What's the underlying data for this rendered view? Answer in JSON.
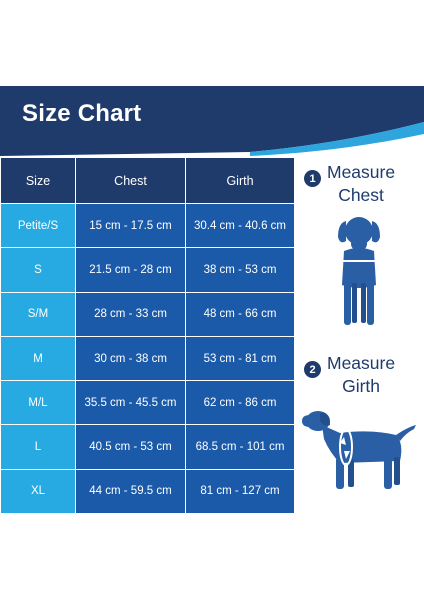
{
  "title": "Size Chart",
  "table": {
    "headers": [
      "Size",
      "Chest",
      "Girth"
    ],
    "rows": [
      {
        "size": "Petite/S",
        "chest": "15 cm - 17.5 cm",
        "girth": "30.4 cm - 40.6 cm"
      },
      {
        "size": "S",
        "chest": "21.5 cm - 28 cm",
        "girth": "38 cm - 53 cm"
      },
      {
        "size": "S/M",
        "chest": "28 cm - 33 cm",
        "girth": "48 cm - 66 cm"
      },
      {
        "size": "M",
        "chest": "30 cm - 38 cm",
        "girth": "53 cm - 81 cm"
      },
      {
        "size": "M/L",
        "chest": "35.5 cm - 45.5 cm",
        "girth": "62 cm - 86 cm"
      },
      {
        "size": "L",
        "chest": "40.5 cm - 53 cm",
        "girth": "68.5 cm - 101 cm"
      },
      {
        "size": "XL",
        "chest": "44 cm - 59.5 cm",
        "girth": "81 cm - 127 cm"
      }
    ]
  },
  "steps": [
    {
      "number": "1",
      "line1": "Measure",
      "line2": "Chest",
      "icon": "dog-front-icon"
    },
    {
      "number": "2",
      "line1": "Measure",
      "line2": "Girth",
      "icon": "dog-side-icon"
    }
  ],
  "colors": {
    "navy": "#1e3b6c",
    "cell_blue": "#1b5aa8",
    "size_light_blue": "#27a9e1",
    "dog_blue": "#2a5fa6",
    "accent_blue": "#2ea6dd"
  }
}
